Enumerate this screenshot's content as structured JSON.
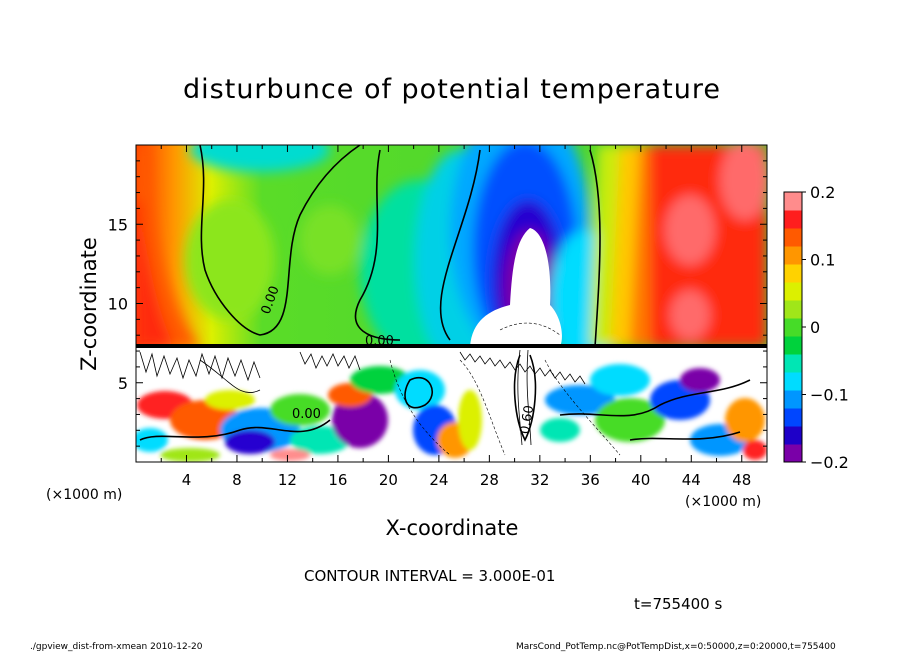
{
  "chart_data": {
    "type": "heatmap",
    "title": "disturbunce of potential temperature",
    "xlabel": "X-coordinate",
    "ylabel": "Z-coordinate",
    "x_unit_label": "(×1000 m)",
    "y_unit_label": "(×1000 m)",
    "xlim": [
      0,
      50
    ],
    "ylim": [
      0,
      20
    ],
    "x_ticks": [
      4,
      8,
      12,
      16,
      20,
      24,
      28,
      32,
      36,
      40,
      44,
      48
    ],
    "y_ticks": [
      5,
      10,
      15
    ],
    "colorbar": {
      "ticks": [
        0.2,
        0.1,
        0,
        -0.1,
        -0.2
      ],
      "tick_labels": [
        "0.2",
        "0.1",
        "0",
        "−0.1",
        "−0.2"
      ],
      "range": [
        -0.2,
        0.2
      ],
      "colors": [
        "#7a00a8",
        "#1e00c8",
        "#0046ff",
        "#0096ff",
        "#00dcff",
        "#00e6b4",
        "#00d23c",
        "#46dc28",
        "#a0e619",
        "#dcf000",
        "#ffd200",
        "#ff9600",
        "#ff5a00",
        "#ff1e1e",
        "#ff8c8c"
      ]
    },
    "contour_labels": [
      "0.00",
      "0.00",
      "0.00",
      "0.60"
    ],
    "contour_interval": "CONTOUR INTERVAL = 3.000E-01"
  },
  "time_label": "t=755400 s",
  "footer": {
    "left": "./gpview_dist-from-xmean  2010-12-20",
    "right": "MarsCond_PotTemp.nc@PotTempDist,x=0:50000,z=0:20000,t=755400"
  },
  "colors": {
    "axis": "#000000",
    "background": "#ffffff"
  }
}
